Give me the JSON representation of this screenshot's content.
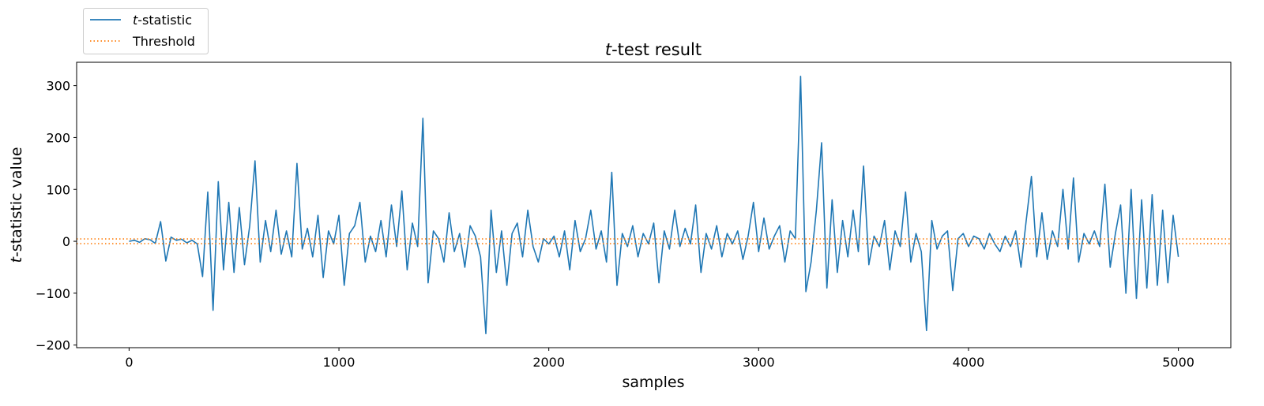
{
  "chart_data": {
    "type": "line",
    "title": {
      "italic": "t",
      "rest": "-test result"
    },
    "xlabel": "samples",
    "ylabel": {
      "italic": "t",
      "rest": "-statistic value"
    },
    "xlim": [
      -250,
      5250
    ],
    "ylim": [
      -205,
      345
    ],
    "xticks": [
      0,
      1000,
      2000,
      3000,
      4000,
      5000
    ],
    "xtick_labels": [
      "0",
      "1000",
      "2000",
      "3000",
      "4000",
      "5000"
    ],
    "yticks": [
      -200,
      -100,
      0,
      100,
      200,
      300
    ],
    "ytick_labels": [
      "−200",
      "−100",
      "0",
      "100",
      "200",
      "300"
    ],
    "grid": false,
    "legend_placement": "upper-left-outside",
    "legend": [
      {
        "italic": "t",
        "rest": "-statistic",
        "style": "solid",
        "color": "#1f77b4"
      },
      {
        "italic": "",
        "rest": "Threshold",
        "style": "dotted",
        "color": "#ff7f0e"
      }
    ],
    "threshold": [
      4.5,
      -4.5
    ],
    "series": [
      {
        "name": "t-statistic",
        "color": "#1f77b4",
        "x_start": 0,
        "x_step": 25,
        "values": [
          0,
          2,
          -2,
          5,
          3,
          -4,
          38,
          -38,
          8,
          2,
          4,
          -3,
          2,
          -5,
          -68,
          95,
          -133,
          115,
          -55,
          75,
          -60,
          65,
          -45,
          30,
          155,
          -40,
          40,
          -20,
          60,
          -25,
          20,
          -30,
          150,
          -15,
          25,
          -30,
          50,
          -70,
          20,
          -5,
          50,
          -85,
          15,
          30,
          75,
          -40,
          10,
          -20,
          40,
          -30,
          70,
          -10,
          97,
          -55,
          35,
          -10,
          237,
          -80,
          20,
          5,
          -40,
          55,
          -20,
          15,
          -50,
          30,
          10,
          -30,
          -178,
          60,
          -60,
          20,
          -85,
          15,
          35,
          -30,
          60,
          -10,
          -40,
          5,
          -5,
          10,
          -30,
          20,
          -55,
          40,
          -20,
          5,
          60,
          -15,
          20,
          -40,
          133,
          -85,
          15,
          -10,
          30,
          -30,
          15,
          -5,
          35,
          -80,
          20,
          -15,
          60,
          -10,
          25,
          -5,
          70,
          -60,
          15,
          -15,
          30,
          -30,
          15,
          -5,
          20,
          -35,
          10,
          75,
          -20,
          45,
          -15,
          10,
          30,
          -40,
          20,
          5,
          318,
          -97,
          -40,
          60,
          190,
          -90,
          80,
          -60,
          40,
          -30,
          60,
          -20,
          145,
          -45,
          10,
          -10,
          40,
          -55,
          20,
          -10,
          95,
          -40,
          15,
          -20,
          -172,
          40,
          -15,
          10,
          20,
          -95,
          5,
          15,
          -10,
          10,
          5,
          -15,
          15,
          -5,
          -20,
          10,
          -10,
          20,
          -50,
          40,
          125,
          -30,
          55,
          -35,
          20,
          -10,
          100,
          -15,
          122,
          -40,
          15,
          -5,
          20,
          -10,
          110,
          -50,
          15,
          70,
          -100,
          100,
          -110,
          80,
          -90,
          90,
          -85,
          60,
          -80,
          50,
          -30
        ]
      }
    ]
  }
}
